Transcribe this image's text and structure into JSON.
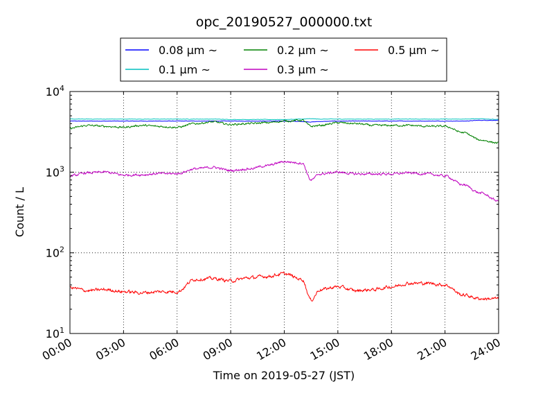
{
  "chart_data": {
    "type": "line",
    "title": "opc_20190527_000000.txt",
    "xlabel": "Time on 2019-05-27 (JST)",
    "ylabel": "Count / L",
    "xscale": "time",
    "yscale": "log",
    "xlim": [
      "00:00",
      "24:00"
    ],
    "ylim": [
      10,
      10000
    ],
    "grid": true,
    "legend_position": "top",
    "x_ticks": [
      "00:00",
      "03:00",
      "06:00",
      "09:00",
      "12:00",
      "15:00",
      "18:00",
      "21:00",
      "24:00"
    ],
    "y_ticks": [
      {
        "base": "10",
        "exp": "1",
        "value": 10
      },
      {
        "base": "10",
        "exp": "2",
        "value": 100
      },
      {
        "base": "10",
        "exp": "3",
        "value": 1000
      },
      {
        "base": "10",
        "exp": "4",
        "value": 10000
      }
    ],
    "x_hours": [
      0,
      1,
      2,
      3,
      4,
      5,
      6,
      7,
      8,
      9,
      10,
      11,
      12,
      13,
      13.5,
      14,
      15,
      16,
      17,
      18,
      19,
      20,
      21,
      22,
      23,
      24
    ],
    "series": [
      {
        "name": "0.08 μm ~",
        "color": "#0000ff",
        "values": [
          4300,
          4300,
          4300,
          4300,
          4300,
          4300,
          4300,
          4300,
          4300,
          4300,
          4300,
          4300,
          4300,
          4250,
          4200,
          4250,
          4300,
          4300,
          4300,
          4300,
          4300,
          4300,
          4300,
          4300,
          4400,
          4400
        ]
      },
      {
        "name": "0.1 μm ~",
        "color": "#00bfbf",
        "values": [
          4550,
          4550,
          4550,
          4550,
          4550,
          4550,
          4550,
          4550,
          4550,
          4500,
          4500,
          4500,
          4500,
          4550,
          4600,
          4550,
          4550,
          4550,
          4550,
          4550,
          4550,
          4550,
          4550,
          4550,
          4600,
          4500
        ]
      },
      {
        "name": "0.2 μm ~",
        "color": "#008000",
        "values": [
          3500,
          3800,
          3700,
          3600,
          3800,
          3700,
          3600,
          4000,
          4200,
          3900,
          4000,
          4100,
          4300,
          4400,
          3700,
          3800,
          4100,
          4000,
          3800,
          3800,
          3800,
          3700,
          3700,
          3100,
          2500,
          2300
        ]
      },
      {
        "name": "0.3 μm ~",
        "color": "#bf00bf",
        "values": [
          900,
          980,
          1000,
          920,
          930,
          960,
          960,
          1100,
          1150,
          1050,
          1100,
          1200,
          1350,
          1300,
          800,
          950,
          1000,
          950,
          950,
          950,
          980,
          950,
          900,
          700,
          550,
          440
        ]
      },
      {
        "name": "0.5 μm ~",
        "color": "#ff0000",
        "values": [
          37,
          34,
          35,
          33,
          32,
          33,
          33,
          47,
          48,
          45,
          49,
          51,
          55,
          47,
          26,
          35,
          38,
          34,
          35,
          38,
          42,
          42,
          40,
          30,
          27,
          27
        ]
      }
    ]
  }
}
